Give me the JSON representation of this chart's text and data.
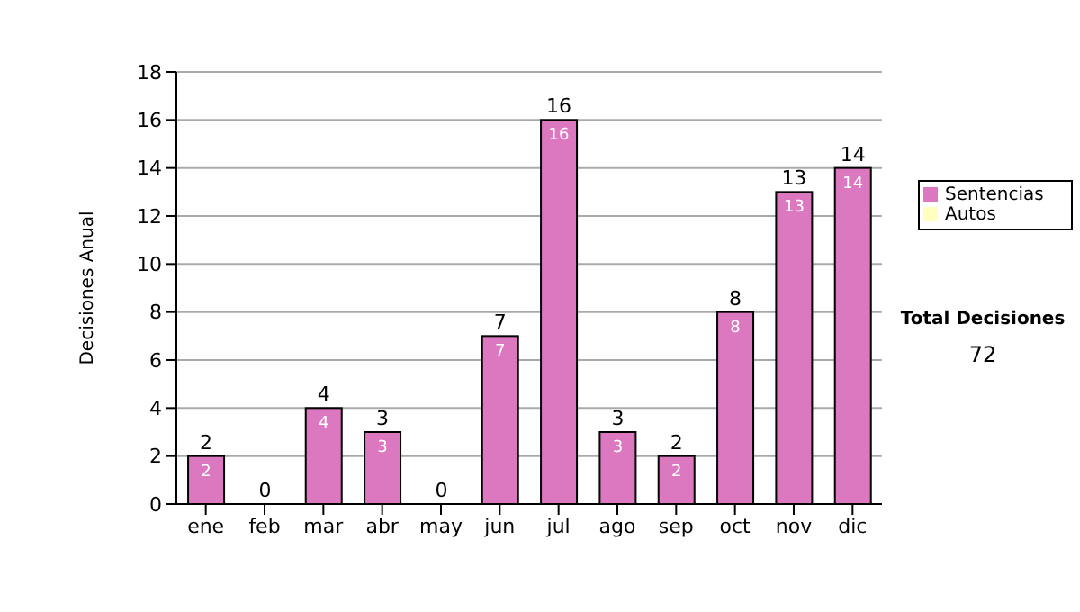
{
  "chart_data": {
    "type": "bar",
    "categories": [
      "ene",
      "feb",
      "mar",
      "abr",
      "may",
      "jun",
      "jul",
      "ago",
      "sep",
      "oct",
      "nov",
      "dic"
    ],
    "series": [
      {
        "name": "Sentencias",
        "color": "#dc78c0",
        "values": [
          2,
          0,
          4,
          3,
          0,
          7,
          16,
          3,
          2,
          8,
          13,
          14
        ],
        "value_labels": [
          "2",
          null,
          "4",
          "3",
          null,
          "7",
          "16",
          "3",
          "2",
          "8",
          "13",
          "14"
        ]
      },
      {
        "name": "Autos",
        "color": "#ffffc0",
        "values": [
          0,
          0,
          0,
          0,
          0,
          0,
          0,
          0,
          0,
          0,
          0,
          0
        ]
      }
    ],
    "stacked": true,
    "totals": [
      "2",
      "0",
      "4",
      "3",
      "0",
      "7",
      "16",
      "3",
      "2",
      "8",
      "13",
      "14"
    ],
    "ylabel": "Decisiones Anual",
    "ylim": [
      0,
      18
    ],
    "yticks": [
      0,
      2,
      4,
      6,
      8,
      10,
      12,
      14,
      16,
      18
    ],
    "grid": "y",
    "legend": "right",
    "annotations": [
      "Total Decisiones",
      "72"
    ]
  }
}
